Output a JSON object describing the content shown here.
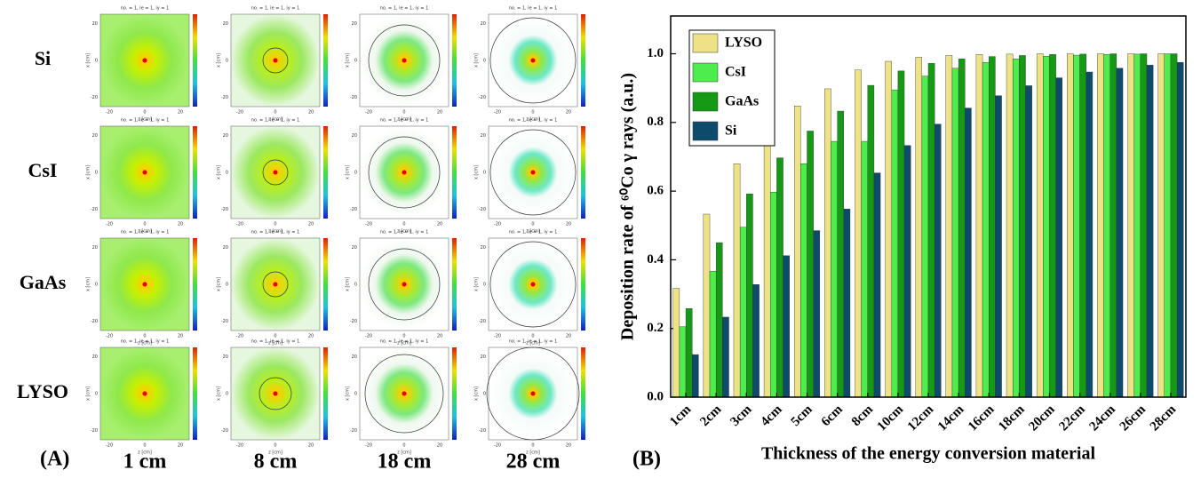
{
  "panel_a": {
    "label": "(A)",
    "rows": [
      "Si",
      "CsI",
      "GaAs",
      "LYSO"
    ],
    "columns": [
      "1 cm",
      "8 cm",
      "18 cm",
      "28 cm"
    ],
    "heatmap_title": "no. = 1, ie = 1, iy = 1",
    "x_label": "z [cm]",
    "y_label": "x [cm]",
    "ticks": [
      -20,
      0,
      20
    ]
  },
  "panel_b": {
    "label": "(B)"
  },
  "chart_data": {
    "type": "bar",
    "ylabel": "Deposition rate of ⁶⁰Co γ rays  (a.u.)",
    "xlabel": "Thickness of the energy conversion material",
    "categories": [
      "1cm",
      "2cm",
      "3cm",
      "4cm",
      "5cm",
      "6cm",
      "8cm",
      "10cm",
      "12cm",
      "14cm",
      "16cm",
      "18cm",
      "20cm",
      "22cm",
      "24cm",
      "26cm",
      "28cm"
    ],
    "series": [
      {
        "name": "LYSO",
        "color": "#ede286",
        "values": [
          0.317,
          0.533,
          0.68,
          0.78,
          0.848,
          0.898,
          0.953,
          0.978,
          0.99,
          0.995,
          0.998,
          0.999,
          1.0,
          1.0,
          1.0,
          1.0,
          1.0
        ]
      },
      {
        "name": "CsI",
        "color": "#4ced4c",
        "values": [
          0.205,
          0.367,
          0.495,
          0.597,
          0.68,
          0.745,
          0.745,
          0.895,
          0.935,
          0.958,
          0.975,
          0.985,
          0.993,
          0.996,
          0.998,
          0.999,
          1.0
        ]
      },
      {
        "name": "GaAs",
        "color": "#169a16",
        "values": [
          0.258,
          0.45,
          0.592,
          0.697,
          0.775,
          0.833,
          0.908,
          0.95,
          0.972,
          0.985,
          0.992,
          0.995,
          0.998,
          0.999,
          1.0,
          1.0,
          1.0
        ]
      },
      {
        "name": "Si",
        "color": "#0e4a6c",
        "values": [
          0.124,
          0.233,
          0.328,
          0.412,
          0.485,
          0.548,
          0.653,
          0.733,
          0.795,
          0.842,
          0.878,
          0.907,
          0.93,
          0.947,
          0.958,
          0.967,
          0.975
        ]
      }
    ],
    "ylim": [
      0,
      1.11
    ],
    "yticks": [
      {
        "value": 0,
        "label": "0.0"
      },
      0.2,
      0.4,
      0.6,
      0.8,
      {
        "value": 1,
        "label": "1.0"
      }
    ],
    "legend": "top-left"
  }
}
